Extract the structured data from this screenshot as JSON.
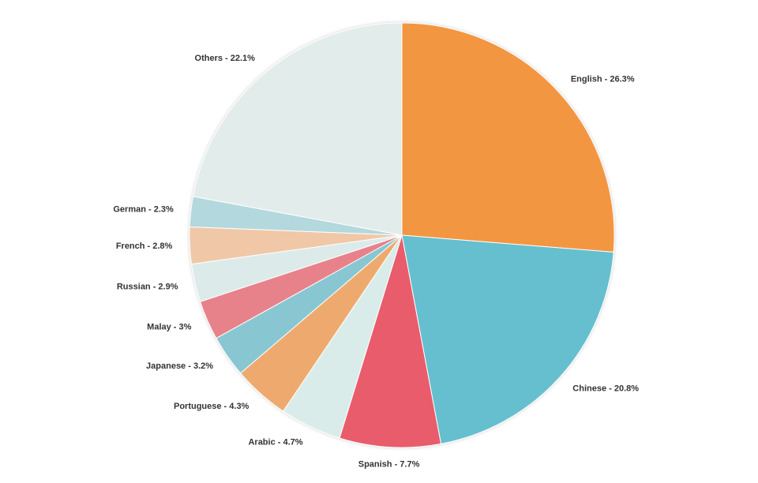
{
  "chart_data": {
    "type": "pie",
    "values": [
      26.3,
      20.8,
      7.7,
      4.7,
      4.3,
      3.2,
      3,
      2.9,
      2.8,
      2.3,
      22.1
    ],
    "value_labels": [
      "English - 26.3%",
      "Chinese - 20.8%",
      "Spanish - 7.7%",
      "Arabic - 4.7%",
      "Portuguese - 4.3%",
      "Japanese - 3.2%",
      "Malay - 3%",
      "Russian - 2.9%",
      "French - 2.8%",
      "German - 2.3%",
      "Others - 22.1%"
    ],
    "colors": [
      "#f39642",
      "#65bfce",
      "#e95c6c",
      "#d9ecea",
      "#eeaa6e",
      "#88c7d1",
      "#e7828b",
      "#dcebe9",
      "#f0c8a8",
      "#b3d8de",
      "#e2ecea"
    ]
  }
}
